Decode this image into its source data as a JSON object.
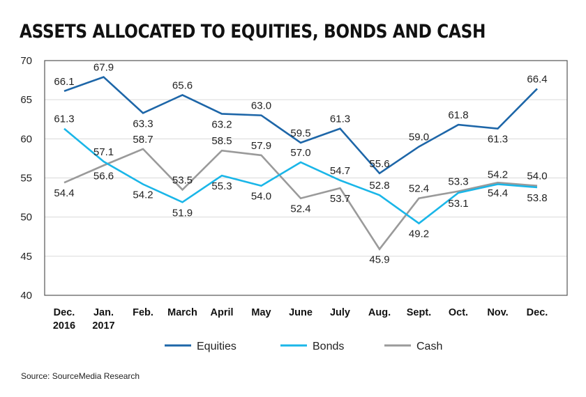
{
  "title": "ASSETS ALLOCATED TO EQUITIES, BONDS AND CASH",
  "source": "Source: SourceMedia Research",
  "chart_data": {
    "type": "line",
    "title": "ASSETS ALLOCATED TO EQUITIES, BONDS AND CASH",
    "categories": [
      [
        "Dec.",
        "2016"
      ],
      [
        "Jan.",
        "2017"
      ],
      [
        "Feb."
      ],
      [
        "March"
      ],
      [
        "April"
      ],
      [
        "May"
      ],
      [
        "June"
      ],
      [
        "July"
      ],
      [
        "Aug."
      ],
      [
        "Sept."
      ],
      [
        "Oct."
      ],
      [
        "Nov."
      ],
      [
        "Dec."
      ]
    ],
    "ylim": [
      40,
      70
    ],
    "yticks": [
      40,
      45,
      50,
      55,
      60,
      65,
      70
    ],
    "grid": "horizontal",
    "legend_position": "bottom-center",
    "series": [
      {
        "name": "Equities",
        "color": "#1d66a8",
        "values": [
          66.1,
          67.9,
          63.3,
          65.6,
          63.2,
          63.0,
          59.5,
          61.3,
          55.6,
          59.0,
          61.8,
          61.3,
          66.4
        ],
        "label_side": [
          "above",
          "above",
          "below",
          "above",
          "below",
          "above",
          "above",
          "above",
          "above",
          "above",
          "above",
          "below",
          "above"
        ]
      },
      {
        "name": "Bonds",
        "color": "#1ab6e8",
        "values": [
          61.3,
          57.1,
          54.2,
          51.9,
          55.3,
          54.0,
          57.0,
          54.7,
          52.8,
          49.2,
          53.1,
          54.2,
          53.8
        ],
        "label_side": [
          "above",
          "above",
          "below",
          "below",
          "below",
          "below",
          "above",
          "above",
          "above",
          "below",
          "below",
          "above",
          "below"
        ]
      },
      {
        "name": "Cash",
        "color": "#9a9a9a",
        "values": [
          54.4,
          56.6,
          58.7,
          53.5,
          58.5,
          57.9,
          52.4,
          53.7,
          45.9,
          52.4,
          53.3,
          54.4,
          54.0
        ],
        "label_side": [
          "below",
          "below",
          "above",
          "above",
          "above",
          "above",
          "below",
          "below",
          "below",
          "above",
          "above",
          "below",
          "above"
        ]
      }
    ]
  }
}
